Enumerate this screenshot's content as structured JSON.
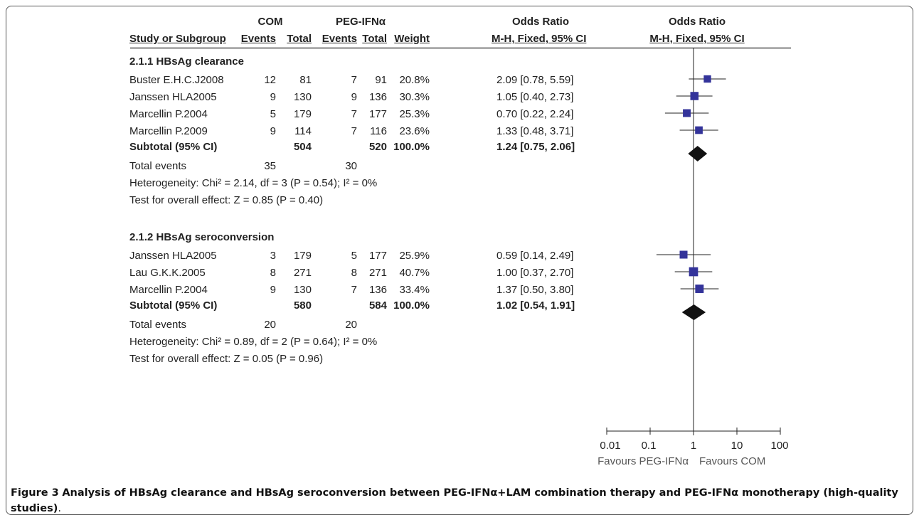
{
  "header": {
    "group1": "COM",
    "group2": "PEG-IFNα",
    "effect": "Odds Ratio",
    "plot_title": "Odds Ratio",
    "study_col": "Study or Subgroup",
    "events": "Events",
    "total": "Total",
    "weight": "Weight",
    "method": "M-H, Fixed, 95% CI",
    "plot_method": "M-H, Fixed, 95% CI"
  },
  "subgroups": [
    {
      "title": "2.1.1 HBsAg clearance",
      "studies": [
        {
          "name": "Buster E.H.C.J2008",
          "e1": "12",
          "t1": "81",
          "e2": "7",
          "t2": "91",
          "weight": "20.8%",
          "ci": "2.09 [0.78, 5.59]",
          "or": 2.09,
          "lo": 0.78,
          "hi": 5.59,
          "w": 20.8
        },
        {
          "name": "Janssen HLA2005",
          "e1": "9",
          "t1": "130",
          "e2": "9",
          "t2": "136",
          "weight": "30.3%",
          "ci": "1.05 [0.40, 2.73]",
          "or": 1.05,
          "lo": 0.4,
          "hi": 2.73,
          "w": 30.3
        },
        {
          "name": "Marcellin P.2004",
          "e1": "5",
          "t1": "179",
          "e2": "7",
          "t2": "177",
          "weight": "25.3%",
          "ci": "0.70 [0.22, 2.24]",
          "or": 0.7,
          "lo": 0.22,
          "hi": 2.24,
          "w": 25.3
        },
        {
          "name": "Marcellin P.2009",
          "e1": "9",
          "t1": "114",
          "e2": "7",
          "t2": "116",
          "weight": "23.6%",
          "ci": "1.33 [0.48, 3.71]",
          "or": 1.33,
          "lo": 0.48,
          "hi": 3.71,
          "w": 23.6
        }
      ],
      "subtotal": {
        "label": "Subtotal (95% CI)",
        "t1": "504",
        "t2": "520",
        "weight": "100.0%",
        "ci": "1.24 [0.75, 2.06]",
        "or": 1.24,
        "lo": 0.75,
        "hi": 2.06
      },
      "total_events": {
        "label": "Total events",
        "e1": "35",
        "e2": "30"
      },
      "heterogeneity": "Heterogeneity: Chi² = 2.14, df = 3 (P = 0.54); I² = 0%",
      "overall": "Test for overall effect: Z = 0.85 (P = 0.40)"
    },
    {
      "title": "2.1.2 HBsAg seroconversion",
      "studies": [
        {
          "name": "Janssen HLA2005",
          "e1": "3",
          "t1": "179",
          "e2": "5",
          "t2": "177",
          "weight": "25.9%",
          "ci": "0.59 [0.14, 2.49]",
          "or": 0.59,
          "lo": 0.14,
          "hi": 2.49,
          "w": 25.9
        },
        {
          "name": "Lau G.K.K.2005",
          "e1": "8",
          "t1": "271",
          "e2": "8",
          "t2": "271",
          "weight": "40.7%",
          "ci": "1.00 [0.37, 2.70]",
          "or": 1.0,
          "lo": 0.37,
          "hi": 2.7,
          "w": 40.7
        },
        {
          "name": "Marcellin P.2004",
          "e1": "9",
          "t1": "130",
          "e2": "7",
          "t2": "136",
          "weight": "33.4%",
          "ci": "1.37 [0.50, 3.80]",
          "or": 1.37,
          "lo": 0.5,
          "hi": 3.8,
          "w": 33.4
        }
      ],
      "subtotal": {
        "label": "Subtotal (95% CI)",
        "t1": "580",
        "t2": "584",
        "weight": "100.0%",
        "ci": "1.02 [0.54, 1.91]",
        "or": 1.02,
        "lo": 0.54,
        "hi": 1.91
      },
      "total_events": {
        "label": "Total events",
        "e1": "20",
        "e2": "20"
      },
      "heterogeneity": "Heterogeneity: Chi² = 0.89, df = 2 (P = 0.64); I² = 0%",
      "overall": "Test for overall effect: Z = 0.05 (P = 0.96)"
    }
  ],
  "axis": {
    "ticks": [
      "0.01",
      "0.1",
      "1",
      "10",
      "100"
    ],
    "favours_left": "Favours PEG-IFNα",
    "favours_right": "Favours COM"
  },
  "caption": {
    "figure_label": "Figure 3",
    "text": "Analysis of HBsAg clearance and HBsAg seroconversion between PEG-IFNα+LAM combination therapy and PEG-IFNα monotherapy (high-quality studies)",
    "end": "."
  },
  "colors": {
    "marker": "#33339a",
    "diamond": "#111111",
    "line": "#222222"
  },
  "chart_data": {
    "type": "forest",
    "scale": "log",
    "xlim": [
      0.01,
      100
    ],
    "xticks": [
      0.01,
      0.1,
      1,
      10,
      100
    ],
    "reference_line": 1,
    "series": [
      {
        "subgroup": "2.1.1 HBsAg clearance",
        "points": [
          {
            "study": "Buster E.H.C.J2008",
            "or": 2.09,
            "lo": 0.78,
            "hi": 5.59,
            "weight": 20.8
          },
          {
            "study": "Janssen HLA2005",
            "or": 1.05,
            "lo": 0.4,
            "hi": 2.73,
            "weight": 30.3
          },
          {
            "study": "Marcellin P.2004",
            "or": 0.7,
            "lo": 0.22,
            "hi": 2.24,
            "weight": 25.3
          },
          {
            "study": "Marcellin P.2009",
            "or": 1.33,
            "lo": 0.48,
            "hi": 3.71,
            "weight": 23.6
          }
        ],
        "pooled": {
          "or": 1.24,
          "lo": 0.75,
          "hi": 2.06
        }
      },
      {
        "subgroup": "2.1.2 HBsAg seroconversion",
        "points": [
          {
            "study": "Janssen HLA2005",
            "or": 0.59,
            "lo": 0.14,
            "hi": 2.49,
            "weight": 25.9
          },
          {
            "study": "Lau G.K.K.2005",
            "or": 1.0,
            "lo": 0.37,
            "hi": 2.7,
            "weight": 40.7
          },
          {
            "study": "Marcellin P.2004",
            "or": 1.37,
            "lo": 0.5,
            "hi": 3.8,
            "weight": 33.4
          }
        ],
        "pooled": {
          "or": 1.02,
          "lo": 0.54,
          "hi": 1.91
        }
      }
    ]
  }
}
